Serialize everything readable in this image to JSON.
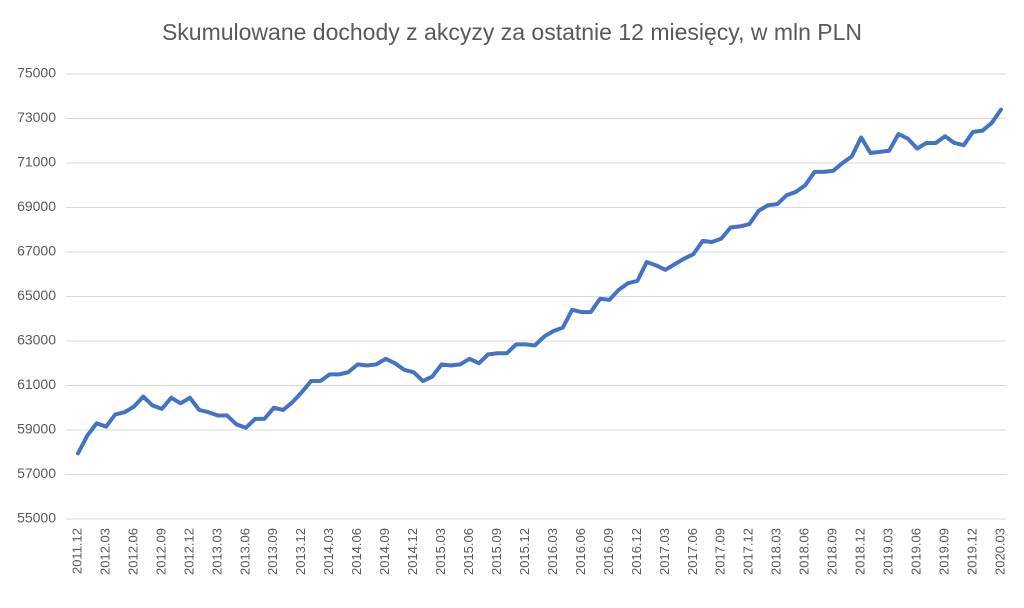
{
  "chart_data": {
    "type": "line",
    "title": "Skumulowane dochody z akcyzy za ostatnie 12 miesięcy, w mln PLN",
    "categories": [
      "2011.12",
      null,
      null,
      "2012.03",
      null,
      null,
      "2012.06",
      null,
      null,
      "2012.09",
      null,
      null,
      "2012.12",
      null,
      null,
      "2013.03",
      null,
      null,
      "2013.06",
      null,
      null,
      "2013.09",
      null,
      null,
      "2013.12",
      null,
      null,
      "2014.03",
      null,
      null,
      "2014.06",
      null,
      null,
      "2014.09",
      null,
      null,
      "2014.12",
      null,
      null,
      "2015.03",
      null,
      null,
      "2015.06",
      null,
      null,
      "2015.09",
      null,
      null,
      "2015.12",
      null,
      null,
      "2016.03",
      null,
      null,
      "2016.06",
      null,
      null,
      "2016.09",
      null,
      null,
      "2016.12",
      null,
      null,
      "2017.03",
      null,
      null,
      "2017.06",
      null,
      null,
      "2017.09",
      null,
      null,
      "2017.12",
      null,
      null,
      "2018.03",
      null,
      null,
      "2018.06",
      null,
      null,
      "2018.09",
      null,
      null,
      "2018.12",
      null,
      null,
      "2019.03",
      null,
      null,
      "2019.06",
      null,
      null,
      "2019.09",
      null,
      null,
      "2019.12",
      null,
      null,
      "2020.03"
    ],
    "series": [
      {
        "name": "dochody z akcyzy",
        "color": "#4472c4",
        "values": [
          57950,
          58750,
          59300,
          59150,
          59700,
          59800,
          60050,
          60500,
          60100,
          59950,
          60450,
          60200,
          60450,
          59900,
          59800,
          59650,
          59650,
          59250,
          59100,
          59500,
          59500,
          60000,
          59900,
          60250,
          60700,
          61200,
          61200,
          61500,
          61500,
          61600,
          61950,
          61900,
          61950,
          62200,
          62000,
          61700,
          61600,
          61200,
          61400,
          61950,
          61900,
          61950,
          62200,
          62000,
          62400,
          62450,
          62450,
          62850,
          62850,
          62800,
          63200,
          63450,
          63600,
          64400,
          64300,
          64300,
          64900,
          64850,
          65300,
          65600,
          65700,
          66550,
          66400,
          66200,
          66450,
          66700,
          66900,
          67500,
          67450,
          67600,
          68100,
          68150,
          68250,
          68850,
          69100,
          69150,
          69550,
          69700,
          70000,
          70600,
          70600,
          70650,
          71000,
          71300,
          72150,
          71450,
          71500,
          71550,
          72300,
          72100,
          71650,
          71900,
          71900,
          72200,
          71900,
          71800,
          72400,
          72450,
          72800,
          73400
        ]
      }
    ],
    "ylim": [
      55000,
      75000
    ],
    "yticks": [
      55000,
      57000,
      59000,
      61000,
      63000,
      65000,
      67000,
      69000,
      71000,
      73000,
      75000
    ],
    "grid": true
  }
}
